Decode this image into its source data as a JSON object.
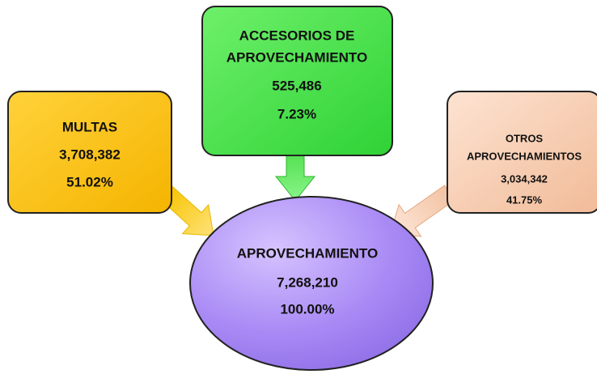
{
  "nodes": [
    {
      "label": [
        "MULTAS"
      ],
      "amount": "3,708,382",
      "percent": "51.02%"
    },
    {
      "label": [
        "ACCESORIOS DE",
        "APROVECHAMIENTO"
      ],
      "amount": "525,486",
      "percent": "7.23%"
    },
    {
      "label": [
        "OTROS",
        "APROVECHAMIENTOS"
      ],
      "amount": "3,034,342",
      "percent": "41.75%"
    },
    {
      "label": [
        "APROVECHAMIENTO"
      ],
      "amount": "7,268,210",
      "percent": "100.00%"
    }
  ]
}
